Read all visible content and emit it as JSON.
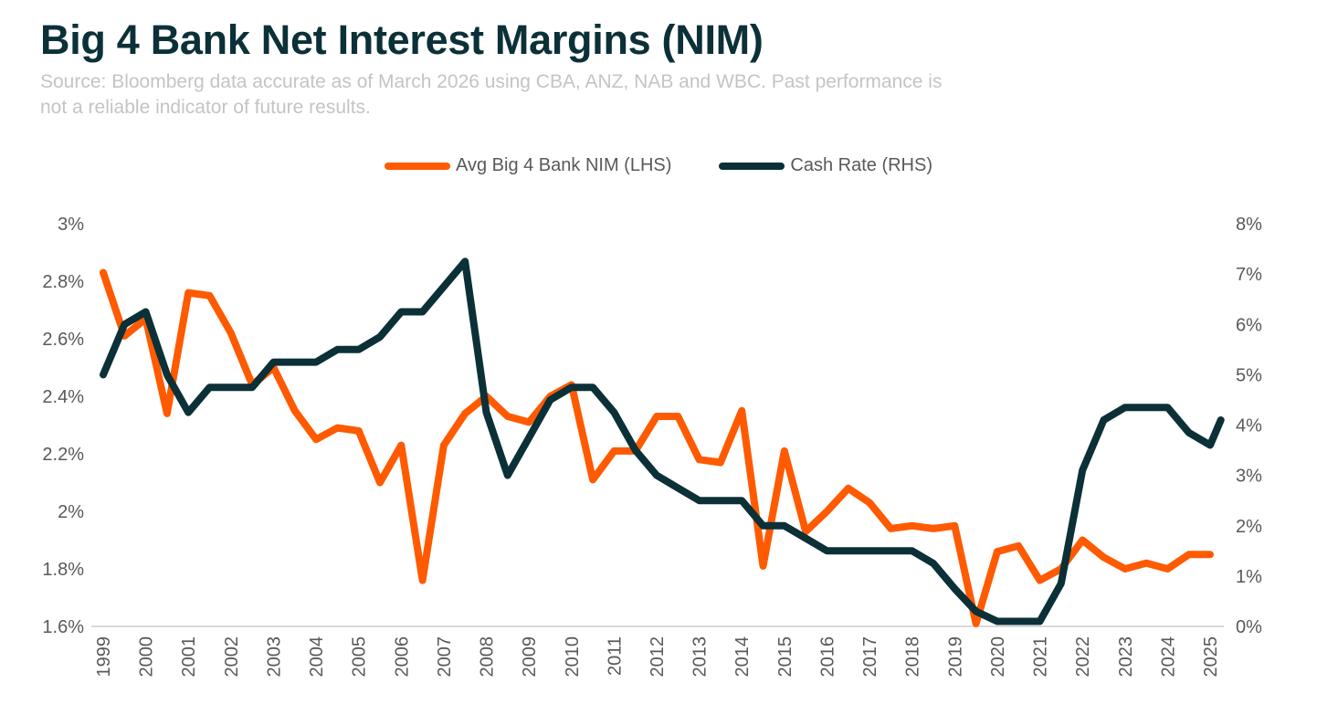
{
  "header": {
    "title": "Big 4 Bank Net Interest Margins (NIM)",
    "subtitle": "Source: Bloomberg data accurate as of March 2026 using CBA, ANZ, NAB and WBC. Past performance is not a reliable indicator of future results."
  },
  "chart_data": {
    "type": "line",
    "title": "Big 4 Bank Net Interest Margins (NIM)",
    "legend_placement": "top",
    "grid": false,
    "x_tick_labels": [
      "1999",
      "2000",
      "2001",
      "2002",
      "2003",
      "2004",
      "2005",
      "2006",
      "2007",
      "2008",
      "2009",
      "2010",
      "2011",
      "2012",
      "2013",
      "2014",
      "2015",
      "2016",
      "2017",
      "2018",
      "2019",
      "2020",
      "2021",
      "2022",
      "2023",
      "2024",
      "2025"
    ],
    "y_left": {
      "ticks": [
        "1.6%",
        "1.8%",
        "2%",
        "2.2%",
        "2.4%",
        "2.6%",
        "2.8%",
        "3%"
      ],
      "range": [
        1.6,
        3.0
      ]
    },
    "y_right": {
      "ticks": [
        "0%",
        "1%",
        "2%",
        "3%",
        "4%",
        "5%",
        "6%",
        "7%",
        "8%"
      ],
      "range": [
        0,
        8
      ]
    },
    "series": [
      {
        "name": "Avg Big 4 Bank NIM (LHS)",
        "axis": "left",
        "color": "#ff5a00",
        "x": [
          1999,
          1999.5,
          2000,
          2000.5,
          2001,
          2001.5,
          2002,
          2002.5,
          2003,
          2003.5,
          2004,
          2004.5,
          2005,
          2005.5,
          2006,
          2006.5,
          2007,
          2007.5,
          2008,
          2008.5,
          2009,
          2009.5,
          2010,
          2010.5,
          2011,
          2011.5,
          2012,
          2012.5,
          2013,
          2013.5,
          2014,
          2014.5,
          2015,
          2015.5,
          2016,
          2016.5,
          2017,
          2017.5,
          2018,
          2018.5,
          2019,
          2019.5,
          2020,
          2020.5,
          2021,
          2021.5,
          2022,
          2022.5,
          2023,
          2023.5,
          2024,
          2024.5,
          2025
        ],
        "values": [
          2.83,
          2.61,
          2.67,
          2.34,
          2.76,
          2.75,
          2.62,
          2.44,
          2.5,
          2.35,
          2.25,
          2.29,
          2.28,
          2.1,
          2.23,
          1.76,
          2.23,
          2.34,
          2.4,
          2.33,
          2.31,
          2.4,
          2.44,
          2.11,
          2.21,
          2.21,
          2.33,
          2.33,
          2.18,
          2.17,
          2.35,
          1.81,
          2.21,
          1.93,
          2.0,
          2.08,
          2.03,
          1.94,
          1.95,
          1.94,
          1.95,
          1.61,
          1.86,
          1.88,
          1.76,
          1.8,
          1.9,
          1.84,
          1.8,
          1.82,
          1.8,
          1.85,
          1.85
        ]
      },
      {
        "name": "Cash Rate (RHS)",
        "axis": "right",
        "color": "#0b3038",
        "x": [
          1999,
          1999.5,
          2000,
          2000.5,
          2001,
          2001.5,
          2002,
          2002.5,
          2003,
          2003.5,
          2004,
          2004.5,
          2005,
          2005.5,
          2006,
          2006.5,
          2007,
          2007.5,
          2008,
          2008.5,
          2009,
          2009.5,
          2010,
          2010.5,
          2011,
          2011.5,
          2012,
          2012.5,
          2013,
          2013.5,
          2014,
          2014.5,
          2015,
          2015.5,
          2016,
          2016.5,
          2017,
          2017.5,
          2018,
          2018.5,
          2019,
          2019.5,
          2020,
          2020.5,
          2021,
          2021.5,
          2022,
          2022.5,
          2023,
          2023.5,
          2024,
          2024.5,
          2025,
          2025.25
        ],
        "values": [
          5.0,
          6.0,
          6.25,
          5.0,
          4.25,
          4.75,
          4.75,
          4.75,
          5.25,
          5.25,
          5.25,
          5.5,
          5.5,
          5.75,
          6.25,
          6.25,
          6.75,
          7.25,
          4.25,
          3.0,
          3.75,
          4.5,
          4.75,
          4.75,
          4.25,
          3.5,
          3.0,
          2.75,
          2.5,
          2.5,
          2.5,
          2.0,
          2.0,
          1.75,
          1.5,
          1.5,
          1.5,
          1.5,
          1.5,
          1.25,
          0.75,
          0.3,
          0.1,
          0.1,
          0.1,
          0.85,
          3.1,
          4.1,
          4.35,
          4.35,
          4.35,
          3.85,
          3.6,
          4.1
        ]
      }
    ]
  }
}
